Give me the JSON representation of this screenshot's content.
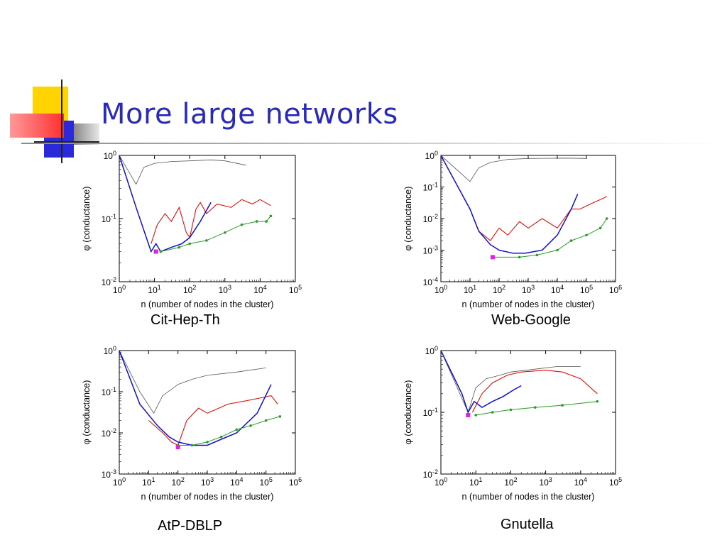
{
  "slide": {
    "title": "More large networks",
    "colors": {
      "title": "#2a2ab8",
      "yellow": "#ffd400",
      "blue": "#2a2ad8",
      "red": "#ff3b3b"
    }
  },
  "chart_data": [
    {
      "type": "line",
      "caption": "Cit-Hep-Th",
      "xlabel": "n (number of nodes in the cluster)",
      "ylabel": "φ (conductance)",
      "xscale": "log",
      "yscale": "log",
      "xlim_exp": [
        0,
        5
      ],
      "ylim_exp": [
        -2,
        0
      ],
      "series": [
        {
          "color": "gray",
          "points": [
            [
              1,
              1
            ],
            [
              3,
              0.35
            ],
            [
              5,
              0.65
            ],
            [
              10,
              0.75
            ],
            [
              30,
              0.8
            ],
            [
              100,
              0.82
            ],
            [
              400,
              0.85
            ],
            [
              1000,
              0.82
            ],
            [
              4000,
              0.7
            ]
          ]
        },
        {
          "color": "red",
          "points": [
            [
              8,
              0.04
            ],
            [
              12,
              0.08
            ],
            [
              20,
              0.12
            ],
            [
              30,
              0.09
            ],
            [
              50,
              0.15
            ],
            [
              80,
              0.06
            ],
            [
              100,
              0.05
            ],
            [
              150,
              0.14
            ],
            [
              200,
              0.18
            ],
            [
              300,
              0.12
            ],
            [
              600,
              0.17
            ],
            [
              1500,
              0.15
            ],
            [
              3000,
              0.2
            ],
            [
              6000,
              0.17
            ],
            [
              10000,
              0.2
            ],
            [
              20000,
              0.16
            ]
          ]
        },
        {
          "color": "blue",
          "points": [
            [
              1,
              1
            ],
            [
              3,
              0.15
            ],
            [
              8,
              0.03
            ],
            [
              11,
              0.04
            ],
            [
              15,
              0.03
            ],
            [
              30,
              0.035
            ],
            [
              60,
              0.04
            ],
            [
              100,
              0.05
            ],
            [
              200,
              0.09
            ],
            [
              400,
              0.18
            ]
          ]
        },
        {
          "color": "green",
          "points": [
            [
              15,
              0.03
            ],
            [
              50,
              0.035
            ],
            [
              100,
              0.04
            ],
            [
              300,
              0.045
            ],
            [
              1000,
              0.06
            ],
            [
              3000,
              0.08
            ],
            [
              8000,
              0.09
            ],
            [
              15000,
              0.09
            ],
            [
              20000,
              0.11
            ]
          ]
        }
      ],
      "marker": [
        11,
        0.03
      ]
    },
    {
      "type": "line",
      "caption": "Web-Google",
      "xlabel": "n (number of nodes in the cluster)",
      "ylabel": "φ (conductance)",
      "xscale": "log",
      "yscale": "log",
      "xlim_exp": [
        0,
        6
      ],
      "ylim_exp": [
        -4,
        0
      ],
      "series": [
        {
          "color": "gray",
          "points": [
            [
              1,
              1
            ],
            [
              10,
              0.15
            ],
            [
              20,
              0.4
            ],
            [
              50,
              0.6
            ],
            [
              200,
              0.75
            ],
            [
              1000,
              0.8
            ],
            [
              20000,
              0.82
            ],
            [
              100000,
              0.8
            ]
          ]
        },
        {
          "color": "red",
          "points": [
            [
              20,
              0.004
            ],
            [
              50,
              0.002
            ],
            [
              100,
              0.005
            ],
            [
              200,
              0.003
            ],
            [
              500,
              0.008
            ],
            [
              1000,
              0.005
            ],
            [
              3000,
              0.01
            ],
            [
              10000,
              0.005
            ],
            [
              30000,
              0.02
            ],
            [
              60000,
              0.02
            ],
            [
              150000,
              0.03
            ],
            [
              300000,
              0.04
            ],
            [
              500000,
              0.05
            ]
          ]
        },
        {
          "color": "blue",
          "points": [
            [
              1,
              1
            ],
            [
              10,
              0.02
            ],
            [
              20,
              0.004
            ],
            [
              50,
              0.0015
            ],
            [
              100,
              0.001
            ],
            [
              300,
              0.0008
            ],
            [
              800,
              0.0008
            ],
            [
              3000,
              0.001
            ],
            [
              10000,
              0.003
            ],
            [
              30000,
              0.02
            ],
            [
              50000,
              0.06
            ]
          ]
        },
        {
          "color": "green",
          "points": [
            [
              60,
              0.0006
            ],
            [
              500,
              0.0006
            ],
            [
              2000,
              0.0007
            ],
            [
              10000,
              0.001
            ],
            [
              30000,
              0.002
            ],
            [
              100000,
              0.003
            ],
            [
              300000,
              0.005
            ],
            [
              500000,
              0.01
            ]
          ]
        }
      ],
      "marker": [
        60,
        0.0006
      ]
    },
    {
      "type": "line",
      "caption": "AtP-DBLP",
      "xlabel": "n (number of nodes in the cluster)",
      "ylabel": "φ (conductance)",
      "xscale": "log",
      "yscale": "log",
      "xlim_exp": [
        0,
        6
      ],
      "ylim_exp": [
        -3,
        0
      ],
      "series": [
        {
          "color": "gray",
          "points": [
            [
              1,
              1
            ],
            [
              5,
              0.1
            ],
            [
              15,
              0.03
            ],
            [
              30,
              0.08
            ],
            [
              100,
              0.15
            ],
            [
              300,
              0.2
            ],
            [
              1000,
              0.25
            ],
            [
              10000,
              0.3
            ],
            [
              100000,
              0.38
            ]
          ]
        },
        {
          "color": "red",
          "points": [
            [
              10,
              0.02
            ],
            [
              30,
              0.01
            ],
            [
              60,
              0.006
            ],
            [
              100,
              0.005
            ],
            [
              200,
              0.02
            ],
            [
              500,
              0.04
            ],
            [
              1000,
              0.03
            ],
            [
              5000,
              0.05
            ],
            [
              20000,
              0.06
            ],
            [
              60000,
              0.07
            ],
            [
              150000,
              0.08
            ],
            [
              250000,
              0.05
            ]
          ]
        },
        {
          "color": "blue",
          "points": [
            [
              1,
              1
            ],
            [
              5,
              0.05
            ],
            [
              20,
              0.015
            ],
            [
              50,
              0.008
            ],
            [
              100,
              0.006
            ],
            [
              300,
              0.005
            ],
            [
              1000,
              0.005
            ],
            [
              3000,
              0.007
            ],
            [
              10000,
              0.01
            ],
            [
              50000,
              0.03
            ],
            [
              150000,
              0.15
            ]
          ]
        },
        {
          "color": "green",
          "points": [
            [
              100,
              0.005
            ],
            [
              300,
              0.005
            ],
            [
              1000,
              0.006
            ],
            [
              3000,
              0.008
            ],
            [
              10000,
              0.012
            ],
            [
              30000,
              0.015
            ],
            [
              100000,
              0.02
            ],
            [
              300000,
              0.025
            ]
          ]
        }
      ],
      "marker": [
        100,
        0.0045
      ]
    },
    {
      "type": "line",
      "caption": "Gnutella",
      "xlabel": "n (number of nodes in the cluster)",
      "ylabel": "φ (conductance)",
      "xscale": "log",
      "yscale": "log",
      "xlim_exp": [
        0,
        5
      ],
      "ylim_exp": [
        -2,
        0
      ],
      "series": [
        {
          "color": "gray",
          "points": [
            [
              1,
              1
            ],
            [
              6,
              0.1
            ],
            [
              10,
              0.25
            ],
            [
              20,
              0.35
            ],
            [
              50,
              0.4
            ],
            [
              100,
              0.45
            ],
            [
              500,
              0.5
            ],
            [
              2000,
              0.55
            ],
            [
              10000,
              0.55
            ]
          ]
        },
        {
          "color": "red",
          "points": [
            [
              8,
              0.1
            ],
            [
              15,
              0.2
            ],
            [
              30,
              0.3
            ],
            [
              80,
              0.4
            ],
            [
              200,
              0.45
            ],
            [
              1000,
              0.48
            ],
            [
              3000,
              0.45
            ],
            [
              10000,
              0.35
            ],
            [
              30000,
              0.2
            ]
          ]
        },
        {
          "color": "blue",
          "points": [
            [
              1,
              1
            ],
            [
              4,
              0.2
            ],
            [
              6,
              0.1
            ],
            [
              9,
              0.15
            ],
            [
              15,
              0.12
            ],
            [
              30,
              0.15
            ],
            [
              60,
              0.18
            ],
            [
              120,
              0.23
            ],
            [
              200,
              0.27
            ]
          ]
        },
        {
          "color": "green",
          "points": [
            [
              10,
              0.09
            ],
            [
              30,
              0.1
            ],
            [
              100,
              0.11
            ],
            [
              500,
              0.12
            ],
            [
              3000,
              0.13
            ],
            [
              30000,
              0.15
            ]
          ]
        }
      ],
      "marker": [
        6,
        0.09
      ]
    }
  ]
}
